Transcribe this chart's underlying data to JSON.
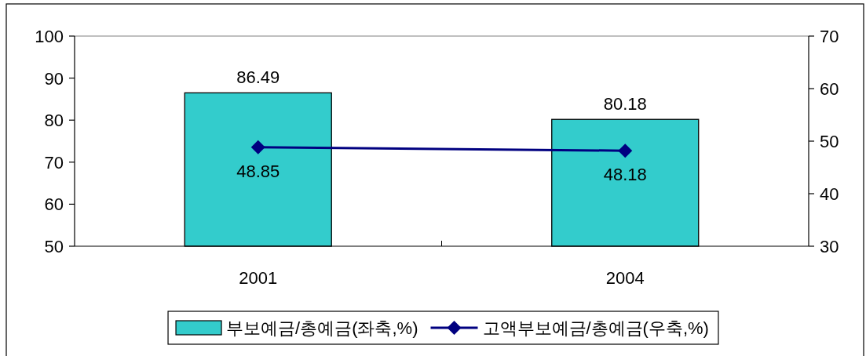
{
  "chart_data": {
    "type": "bar",
    "categories": [
      "2001",
      "2004"
    ],
    "series": [
      {
        "name": "부보예금/총예금(좌축,%)",
        "color": "#33cccc",
        "values": [
          86.49,
          80.18
        ]
      },
      {
        "name": "고액부보예금/총예금(우축,%)",
        "type": "line",
        "axis": "y2",
        "color": "#000080",
        "values": [
          48.85,
          48.18
        ]
      }
    ],
    "ylim": [
      50,
      100
    ],
    "yticks": [
      50,
      60,
      70,
      80,
      90,
      100
    ],
    "y2lim": [
      30,
      70
    ],
    "y2ticks": [
      30,
      40,
      50,
      60,
      70
    ],
    "marker": "diamond",
    "line_style": "solid",
    "data_labels": true,
    "legend": "bottom",
    "grid": false
  }
}
